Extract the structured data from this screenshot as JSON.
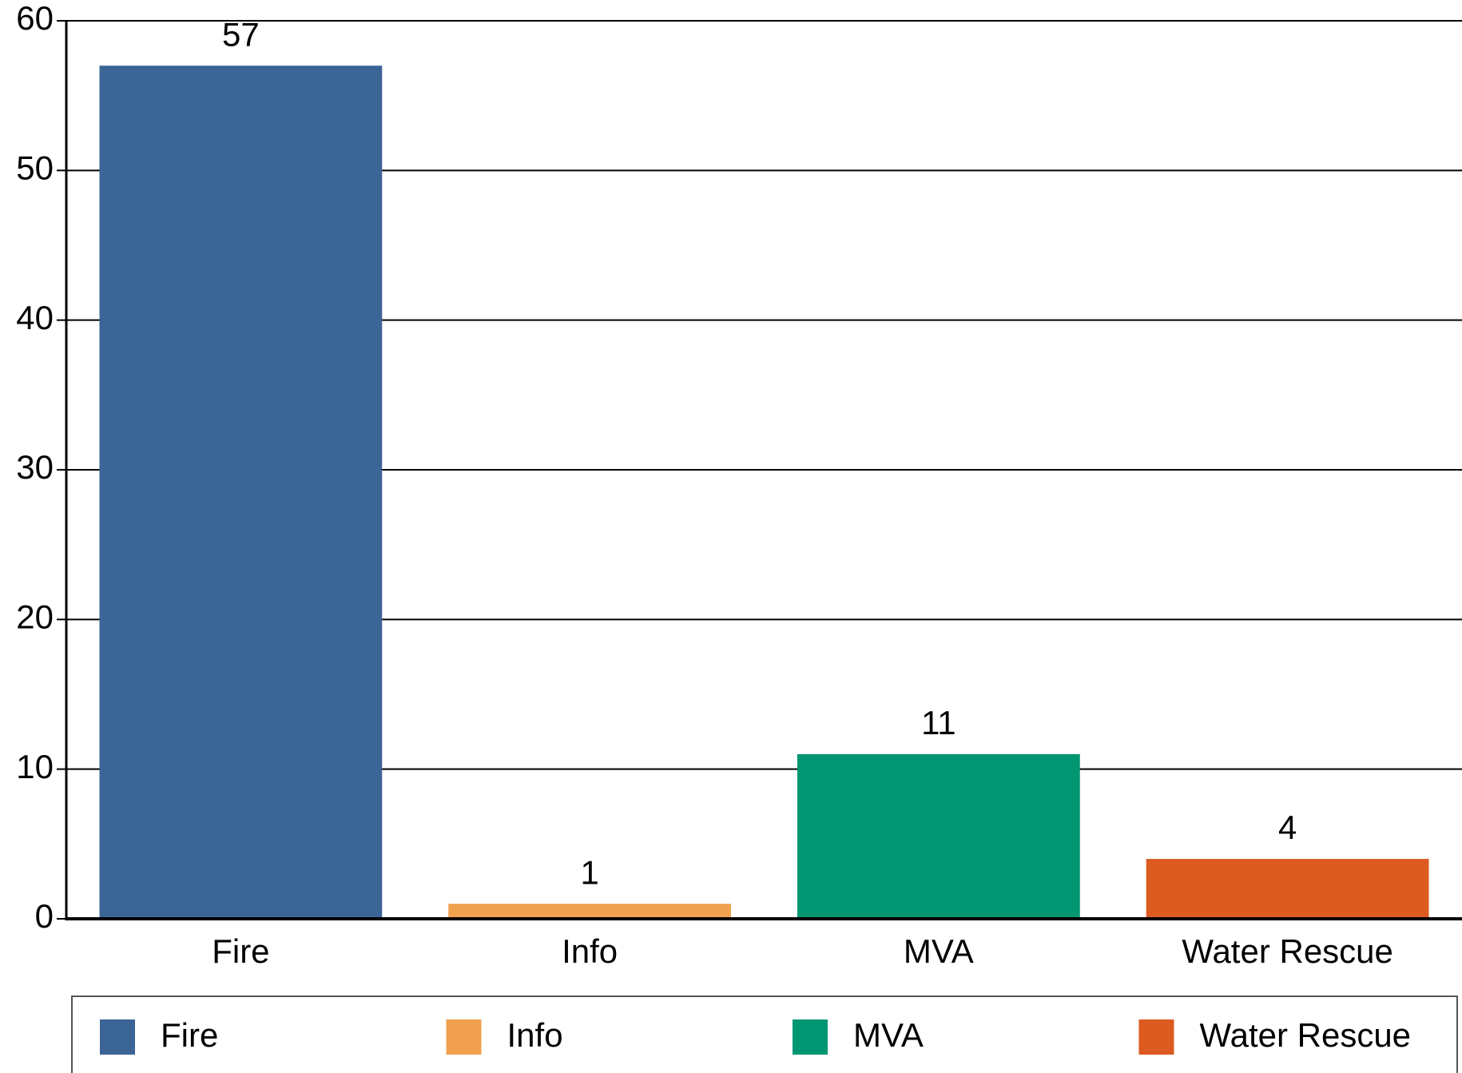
{
  "chart_data": {
    "type": "bar",
    "categories": [
      "Fire",
      "Info",
      "MVA",
      "Water Rescue"
    ],
    "values": [
      57,
      1,
      11,
      4
    ],
    "colors": [
      "#3b6497",
      "#f0a04f",
      "#009672",
      "#dd5a20"
    ],
    "ylim": [
      0,
      60
    ],
    "yticks": [
      0,
      10,
      20,
      30,
      40,
      50,
      60
    ],
    "grid": true,
    "legend": "bottom"
  }
}
